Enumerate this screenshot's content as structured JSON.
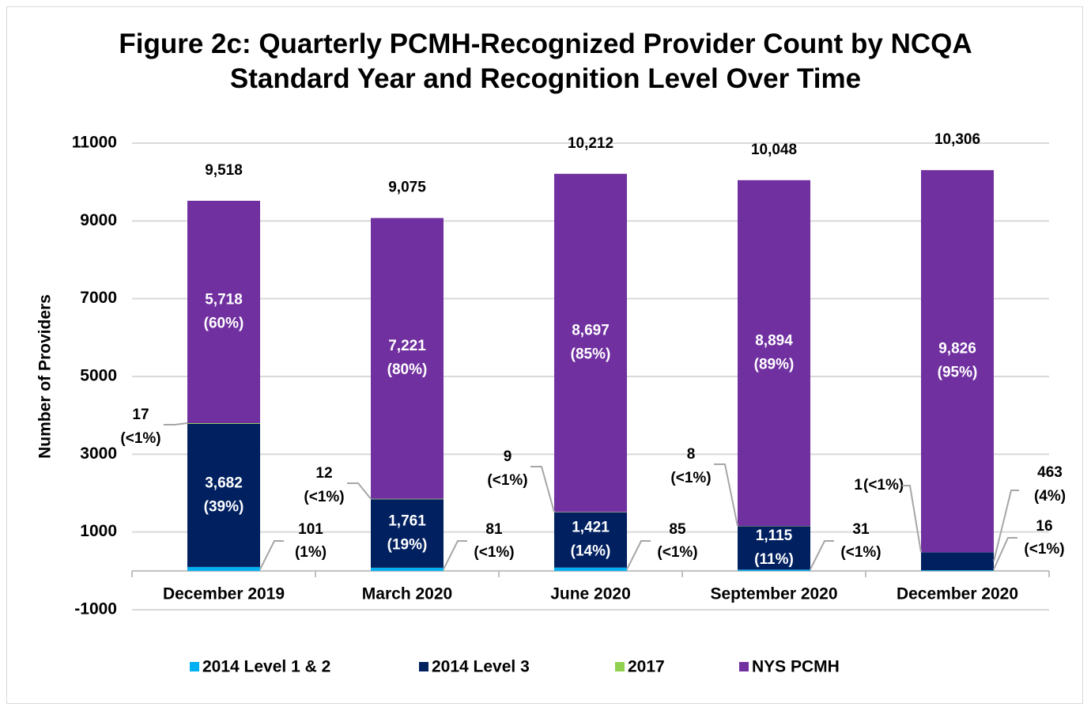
{
  "chart_data": {
    "type": "stacked_bar",
    "title": "Figure 2c: Quarterly PCMH-Recognized Provider Count by NCQA Standard Year and Recognition Level Over Time",
    "y_label": "Number of Providers",
    "categories": [
      "December 2019",
      "March 2020",
      "June 2020",
      "September 2020",
      "December 2020"
    ],
    "series": [
      {
        "name": "2014 Level 1 & 2",
        "color": "#00b0f0",
        "values": [
          101,
          81,
          85,
          31,
          16
        ],
        "value_labels": [
          "101",
          "81",
          "85",
          "31",
          "16"
        ],
        "percent_labels": [
          "(1%)",
          "(<1%)",
          "(<1%)",
          "(<1%)",
          "(<1%)"
        ]
      },
      {
        "name": "2014 Level 3",
        "color": "#002060",
        "values": [
          3682,
          1761,
          1421,
          1115,
          463
        ],
        "value_labels": [
          "3,682",
          "1,761",
          "1,421",
          "1,115",
          "463"
        ],
        "percent_labels": [
          "(39%)",
          "(19%)",
          "(14%)",
          "(11%)",
          "(4%)"
        ]
      },
      {
        "name": "2017",
        "color": "#92d050",
        "values": [
          17,
          12,
          9,
          8,
          1
        ],
        "value_labels": [
          "17",
          "12",
          "9",
          "8",
          "1"
        ],
        "percent_labels": [
          "(<1%)",
          "(<1%)",
          "(<1%)",
          "(<1%)",
          "(<1%)"
        ]
      },
      {
        "name": "NYS PCMH",
        "color": "#7030a0",
        "values": [
          5718,
          7221,
          8697,
          8894,
          9826
        ],
        "value_labels": [
          "5,718",
          "7,221",
          "8,697",
          "8,894",
          "9,826"
        ],
        "percent_labels": [
          "(60%)",
          "(80%)",
          "(85%)",
          "(89%)",
          "(95%)"
        ]
      }
    ],
    "totals": [
      9518,
      9075,
      10212,
      10048,
      10306
    ],
    "total_labels": [
      "9,518",
      "9,075",
      "10,212",
      "10,048",
      "10,306"
    ],
    "ylim": [
      -1000,
      11000
    ],
    "yticks": [
      -1000,
      1000,
      3000,
      5000,
      7000,
      9000,
      11000
    ],
    "grid": true,
    "legend": "bottom"
  }
}
